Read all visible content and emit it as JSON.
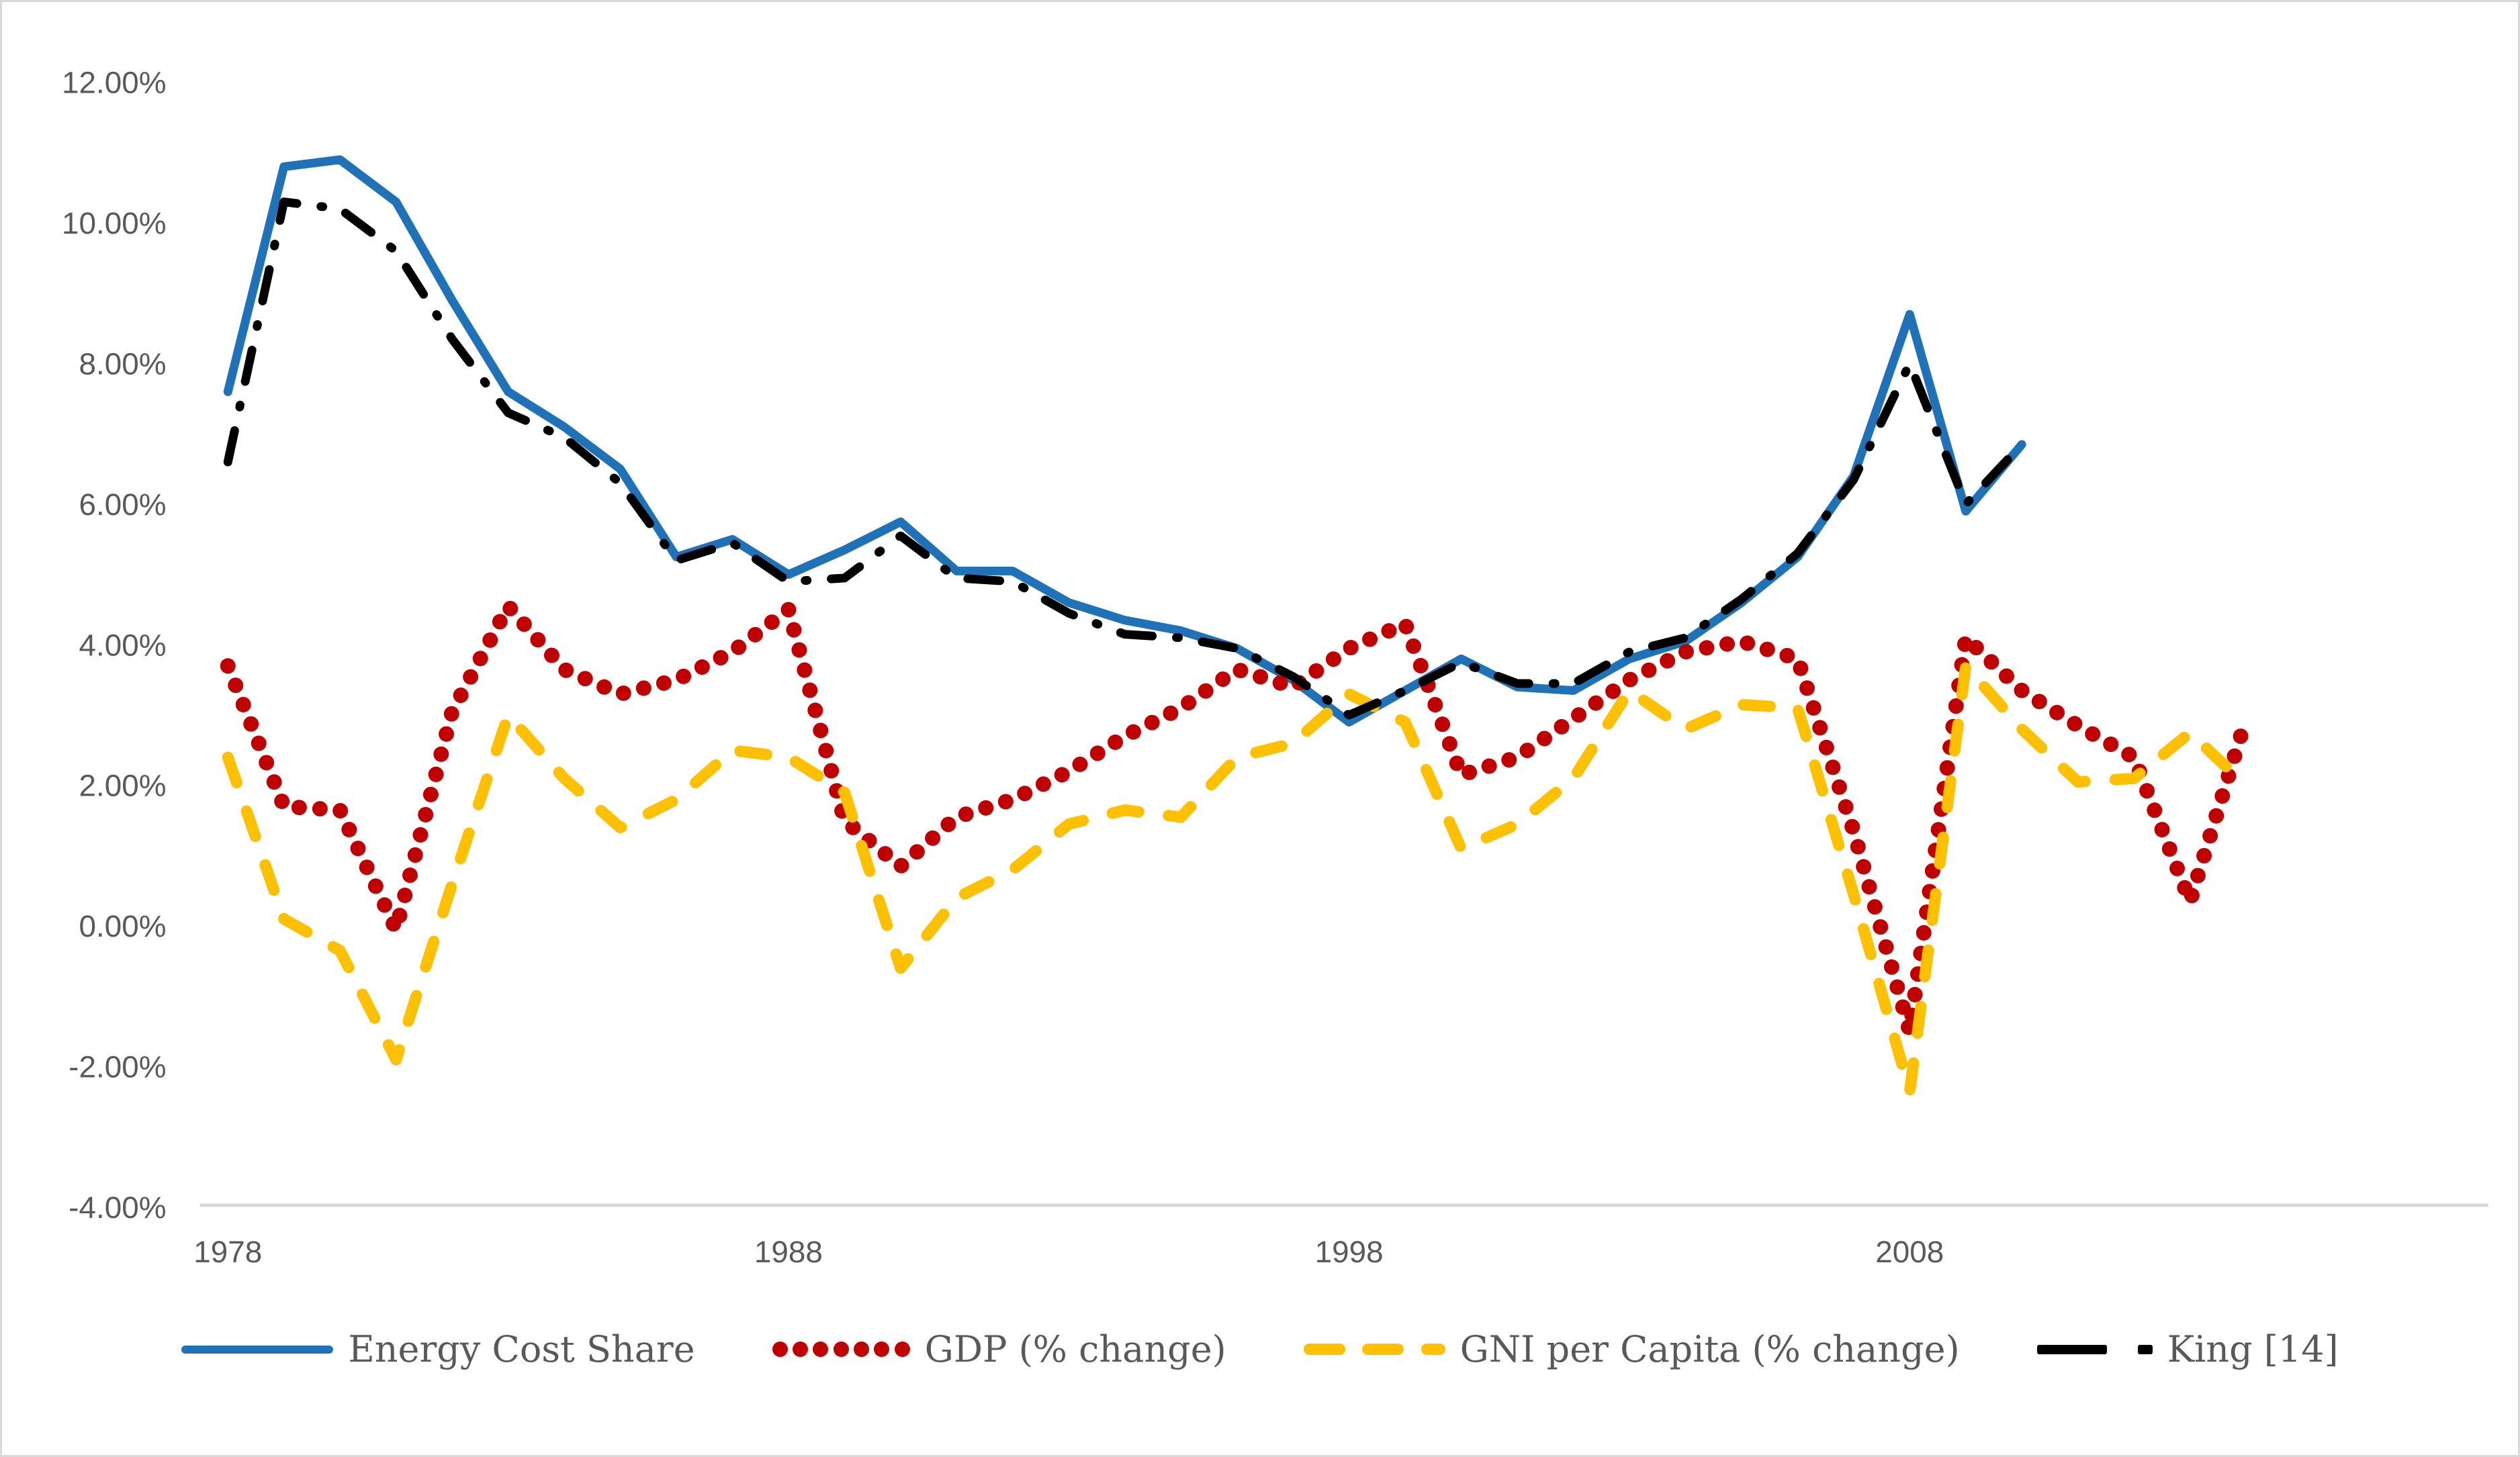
{
  "chart_data": {
    "type": "line",
    "title": "",
    "xlabel": "",
    "ylabel": "",
    "x_years": [
      1978,
      1979,
      1980,
      1981,
      1982,
      1983,
      1984,
      1985,
      1986,
      1987,
      1988,
      1989,
      1990,
      1991,
      1992,
      1993,
      1994,
      1995,
      1996,
      1997,
      1998,
      1999,
      2000,
      2001,
      2002,
      2003,
      2004,
      2005,
      2006,
      2007,
      2008,
      2009,
      2010,
      2011,
      2012,
      2013,
      2014
    ],
    "ylim": [
      -4.0,
      12.0
    ],
    "y_tick_labels": [
      "12.00%",
      "10.00%",
      "8.00%",
      "6.00%",
      "4.00%",
      "2.00%",
      "0.00%",
      "-2.00%",
      "-4.00%"
    ],
    "y_tick_values": [
      12,
      10,
      8,
      6,
      4,
      2,
      0,
      -2,
      -4
    ],
    "x_tick_labels": [
      "1978",
      "1988",
      "1998",
      "2008"
    ],
    "x_tick_values": [
      1978,
      1988,
      1998,
      2008
    ],
    "grid": "off",
    "legend_position": "bottom",
    "series": [
      {
        "name": "Energy Cost Share",
        "color": "#1F72B8",
        "style": "solid",
        "values": [
          7.6,
          10.8,
          10.9,
          10.3,
          8.9,
          7.6,
          7.1,
          6.5,
          5.25,
          5.5,
          5.0,
          5.35,
          5.75,
          5.05,
          5.05,
          4.6,
          4.35,
          4.2,
          3.95,
          3.5,
          2.9,
          3.35,
          3.8,
          3.4,
          3.35,
          3.8,
          4.05,
          4.6,
          5.25,
          6.4,
          8.7,
          5.9,
          6.85,
          null,
          null,
          null,
          null
        ]
      },
      {
        "name": "GDP (% change)",
        "color": "#C00000",
        "style": "dotted",
        "values": [
          3.7,
          1.7,
          1.65,
          -0.05,
          3.05,
          4.55,
          3.65,
          3.3,
          3.5,
          3.9,
          4.5,
          1.5,
          0.85,
          1.55,
          1.8,
          2.2,
          2.7,
          3.1,
          3.65,
          3.4,
          3.95,
          4.3,
          2.15,
          2.4,
          2.95,
          3.5,
          3.9,
          4.05,
          3.8,
          1.35,
          -1.5,
          4.1,
          3.35,
          2.85,
          2.4,
          0.35,
          2.95
        ]
      },
      {
        "name": "GNI per Capita (% change)",
        "color": "#FFC000",
        "style": "dashed",
        "values": [
          2.4,
          0.1,
          -0.35,
          -1.9,
          0.6,
          3.0,
          2.1,
          1.4,
          1.8,
          2.5,
          2.4,
          1.9,
          -0.6,
          0.4,
          0.8,
          1.45,
          1.65,
          1.55,
          2.4,
          2.6,
          3.3,
          2.9,
          1.1,
          1.45,
          2.1,
          3.35,
          2.8,
          3.15,
          3.1,
          0.45,
          -2.35,
          3.7,
          2.8,
          2.05,
          2.1,
          2.75,
          2.0
        ]
      },
      {
        "name": "King [14]",
        "color": "#000000",
        "style": "dashdot",
        "values": [
          6.6,
          10.3,
          10.2,
          9.6,
          8.35,
          7.3,
          6.95,
          6.3,
          5.2,
          5.45,
          4.9,
          4.95,
          5.55,
          4.95,
          4.9,
          4.45,
          4.15,
          4.1,
          3.95,
          3.55,
          3.0,
          3.35,
          3.75,
          3.45,
          3.45,
          3.9,
          4.1,
          4.65,
          5.3,
          6.35,
          8.0,
          6.0,
          6.85,
          null,
          null,
          null,
          null
        ]
      }
    ],
    "axis_color": "#D9D9D9",
    "tick_label_color": "#595959",
    "plot": {
      "x0": 335,
      "x_per_year": 83.7,
      "y_zero": 1380,
      "y_per_unit": 105,
      "axis_y": 1797,
      "axis_x_start": 293,
      "axis_x_end": 3710,
      "ylabel_right_edge": 243,
      "xlabel_baseline": 1882
    }
  },
  "legend": {
    "items": [
      {
        "label": "Energy Cost Share"
      },
      {
        "label": "GDP (% change)"
      },
      {
        "label": "GNI per Capita (% change)"
      },
      {
        "label": "King [14]"
      }
    ]
  }
}
